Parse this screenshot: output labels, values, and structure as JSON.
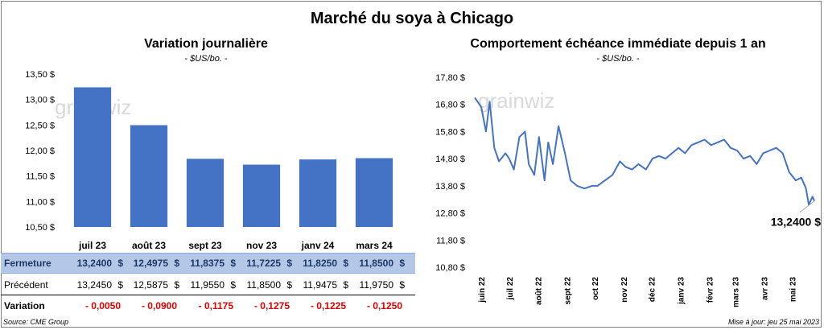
{
  "title": "Marché du soya à Chicago",
  "left_chart": {
    "title": "Variation  journalière",
    "subtitle": "- $US/bo. -"
  },
  "right_chart": {
    "title": "Comportement  échéance immédiate depuis 1 an",
    "subtitle": "- $US/bo. -",
    "last_value_label": "13,2400 $"
  },
  "watermark": "grainwiz",
  "table": {
    "row_labels": {
      "close": "Fermeture",
      "prev": "Précédent",
      "var": "Variation"
    },
    "currency": "$",
    "close": [
      "13,2400",
      "12,4975",
      "11,8375",
      "11,7225",
      "11,8250",
      "11,8500"
    ],
    "prev": [
      "13,2450",
      "12,5875",
      "11,9550",
      "11,8500",
      "11,9475",
      "11,9750"
    ],
    "var": [
      "- 0,0050",
      "- 0,0900",
      "- 0,1175",
      "- 0,1275",
      "- 0,1225",
      "- 0,1250"
    ]
  },
  "footer": {
    "source": "Source: CME Group",
    "updated": "Mise à jour: jeu 25 mai 2023"
  },
  "colors": {
    "bar": "#4472c4",
    "line": "#4472c4",
    "negative": "#e00000",
    "header_row": "#b4c7e7"
  },
  "chart_data": [
    {
      "type": "bar",
      "title": "Variation  journalière",
      "subtitle": "- $US/bo. -",
      "categories": [
        "juil 23",
        "août 23",
        "sept 23",
        "nov 23",
        "janv 24",
        "mars 24"
      ],
      "values": [
        13.24,
        12.4975,
        11.8375,
        11.7225,
        11.825,
        11.85
      ],
      "ylim": [
        10.5,
        13.5
      ],
      "yticks": [
        10.5,
        11.0,
        11.5,
        12.0,
        12.5,
        13.0,
        13.5
      ],
      "ytick_labels": [
        "10,50 $",
        "11,00 $",
        "11,50 $",
        "12,00 $",
        "12,50 $",
        "13,00 $",
        "13,50 $"
      ],
      "grid": false
    },
    {
      "type": "line",
      "title": "Comportement  échéance immédiate depuis 1 an",
      "subtitle": "- $US/bo. -",
      "ylim": [
        10.8,
        17.8
      ],
      "yticks": [
        10.8,
        11.8,
        12.8,
        13.8,
        14.8,
        15.8,
        16.8,
        17.8
      ],
      "ytick_labels": [
        "10,80 $",
        "11,80 $",
        "12,80 $",
        "13,80 $",
        "14,80 $",
        "15,80 $",
        "16,80 $",
        "17,80 $"
      ],
      "xtick_labels": [
        "juin 22",
        "juil 22",
        "août 22",
        "sept 22",
        "oct 22",
        "nov 22",
        "déc 22",
        "janv 23",
        "févr 23",
        "mars 23",
        "avr 23",
        "mai 23"
      ],
      "x": [
        "2022-05-25",
        "2022-06-01",
        "2022-06-06",
        "2022-06-10",
        "2022-06-15",
        "2022-06-20",
        "2022-06-27",
        "2022-07-01",
        "2022-07-06",
        "2022-07-12",
        "2022-07-18",
        "2022-07-22",
        "2022-07-28",
        "2022-08-02",
        "2022-08-08",
        "2022-08-12",
        "2022-08-17",
        "2022-08-23",
        "2022-08-30",
        "2022-09-05",
        "2022-09-12",
        "2022-09-20",
        "2022-09-28",
        "2022-10-04",
        "2022-10-12",
        "2022-10-20",
        "2022-10-28",
        "2022-11-03",
        "2022-11-10",
        "2022-11-17",
        "2022-11-25",
        "2022-12-02",
        "2022-12-09",
        "2022-12-16",
        "2022-12-23",
        "2022-12-30",
        "2023-01-06",
        "2023-01-13",
        "2023-01-20",
        "2023-01-27",
        "2023-02-03",
        "2023-02-10",
        "2023-02-17",
        "2023-02-24",
        "2023-03-03",
        "2023-03-10",
        "2023-03-17",
        "2023-03-24",
        "2023-03-31",
        "2023-04-07",
        "2023-04-14",
        "2023-04-21",
        "2023-04-28",
        "2023-05-05",
        "2023-05-11",
        "2023-05-16",
        "2023-05-19",
        "2023-05-23",
        "2023-05-25"
      ],
      "values": [
        17.05,
        16.7,
        15.8,
        16.9,
        15.2,
        14.7,
        15.0,
        14.8,
        14.4,
        15.6,
        15.8,
        14.6,
        14.2,
        15.6,
        14.0,
        15.4,
        14.6,
        16.0,
        15.0,
        14.0,
        13.8,
        13.7,
        13.8,
        13.8,
        14.0,
        14.2,
        14.7,
        14.5,
        14.4,
        14.6,
        14.4,
        14.8,
        14.9,
        14.8,
        15.0,
        15.2,
        15.0,
        15.3,
        15.4,
        15.5,
        15.3,
        15.4,
        15.5,
        15.2,
        15.1,
        14.8,
        14.9,
        14.6,
        15.0,
        15.1,
        15.2,
        15.0,
        14.3,
        14.0,
        14.1,
        13.7,
        13.1,
        13.4,
        13.24
      ],
      "last_label": "13,2400 $",
      "grid": false
    }
  ]
}
